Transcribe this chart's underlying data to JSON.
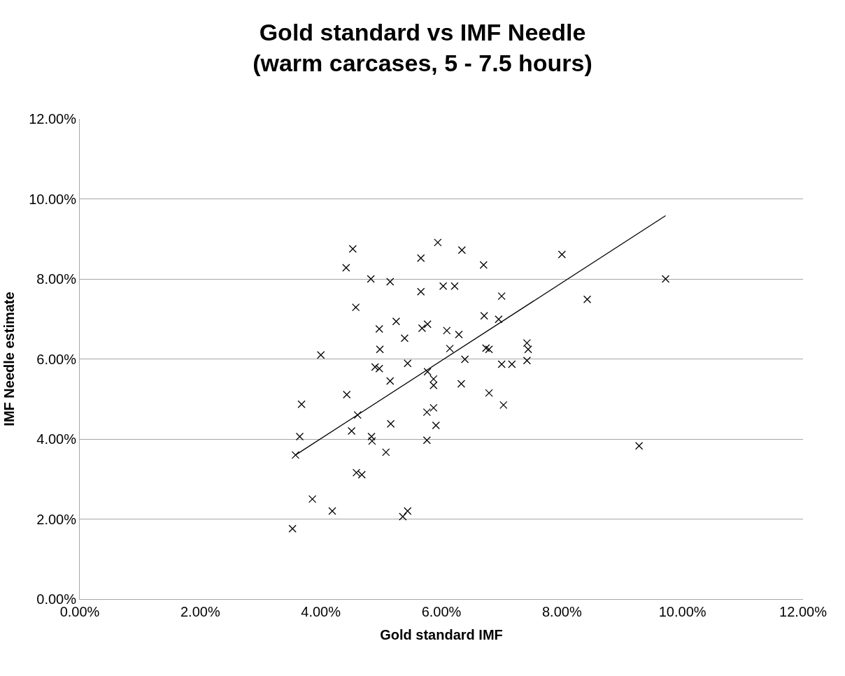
{
  "chart_data": {
    "type": "scatter",
    "title": "Gold standard vs IMF Needle\n(warm carcases, 5 - 7.5 hours)",
    "xlabel": "Gold standard IMF",
    "ylabel": "IMF Needle estimate",
    "series": [
      {
        "marker": "cross",
        "color": "#000000",
        "x": [
          4.53,
          5.66,
          4.42,
          4.83,
          5.15,
          5.66,
          6.03,
          4.58,
          5.25,
          4.97,
          5.68,
          5.77,
          6.09,
          5.39,
          4.98,
          4.0,
          6.14,
          4.9,
          4.97,
          5.44,
          5.77,
          5.87,
          5.87,
          5.15,
          4.43,
          3.68,
          4.61,
          5.76,
          5.87,
          5.16,
          5.91,
          4.51,
          3.65,
          4.84,
          4.85,
          5.76,
          5.08,
          3.58,
          4.59,
          4.68,
          3.86,
          4.19,
          5.44,
          5.36,
          3.53,
          5.94,
          6.34,
          8.0,
          6.7,
          6.22,
          7.0,
          8.42,
          6.71,
          6.95,
          6.29,
          6.74,
          6.79,
          7.42,
          7.44,
          6.39,
          7.0,
          7.17,
          7.42,
          6.33,
          6.79,
          7.03,
          9.72,
          9.28
        ],
        "values": [
          8.75,
          8.52,
          8.28,
          8.0,
          7.93,
          7.68,
          7.82,
          7.29,
          6.94,
          6.75,
          6.77,
          6.87,
          6.71,
          6.52,
          6.24,
          6.1,
          6.26,
          5.8,
          5.76,
          5.89,
          5.68,
          5.5,
          5.34,
          5.45,
          5.11,
          4.87,
          4.6,
          4.67,
          4.78,
          4.38,
          4.34,
          4.2,
          4.06,
          4.06,
          3.95,
          3.97,
          3.67,
          3.6,
          3.16,
          3.11,
          2.5,
          2.2,
          2.2,
          2.06,
          1.76,
          8.91,
          8.72,
          8.61,
          8.35,
          7.82,
          7.57,
          7.49,
          7.08,
          6.99,
          6.61,
          6.27,
          6.24,
          6.4,
          6.24,
          5.99,
          5.87,
          5.87,
          5.96,
          5.38,
          5.15,
          4.85,
          8.0,
          3.83
        ]
      },
      {
        "type": "line",
        "color": "#000000",
        "x": [
          3.58,
          9.72
        ],
        "values": [
          3.6,
          9.58
        ]
      }
    ],
    "xlim": [
      0,
      12
    ],
    "ylim": [
      0,
      12
    ],
    "xticks": [
      {
        "value": 0,
        "label": "0.00%"
      },
      {
        "value": 2,
        "label": "2.00%"
      },
      {
        "value": 4,
        "label": "4.00%"
      },
      {
        "value": 6,
        "label": "6.00%"
      },
      {
        "value": 8,
        "label": "8.00%"
      },
      {
        "value": 10,
        "label": "10.00%"
      },
      {
        "value": 12,
        "label": "12.00%"
      }
    ],
    "yticks": [
      {
        "value": 0,
        "label": "0.00%"
      },
      {
        "value": 2,
        "label": "2.00%"
      },
      {
        "value": 4,
        "label": "4.00%"
      },
      {
        "value": 6,
        "label": "6.00%"
      },
      {
        "value": 8,
        "label": "8.00%"
      },
      {
        "value": 10,
        "label": "10.00%"
      },
      {
        "value": 12,
        "label": "12.00%"
      }
    ],
    "grid": "y"
  }
}
